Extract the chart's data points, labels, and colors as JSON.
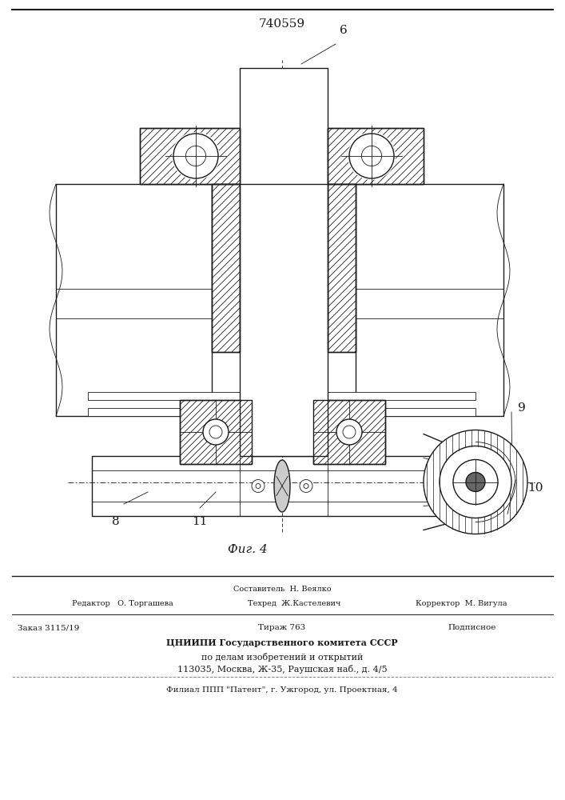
{
  "patent_number": "740559",
  "fig_label": "Фиг. 4",
  "bg_color": "#ffffff",
  "line_color": "#1a1a1a",
  "footer_line0_center": "Составитель  Н. Веялко",
  "footer_line1_left": "Редактор   О. Торгашева",
  "footer_line1_center": "Техред  Ж.Кастелевич",
  "footer_line1_right": "Корректор  М. Вигула",
  "footer_line2_left": "Заказ 3115/19",
  "footer_line2_center": "Тираж 763",
  "footer_line2_right": "Подписное",
  "footer_line3": "ЦНИИПИ Государственного комитета СССР",
  "footer_line4": "по делам изобретений и открытий",
  "footer_line5": "113035, Москва, Ж-35, Раушская наб., д. 4/5",
  "footer_line6": "Филиал ППП \"Патент\", г. Ужгород, ул. Проектная, 4"
}
